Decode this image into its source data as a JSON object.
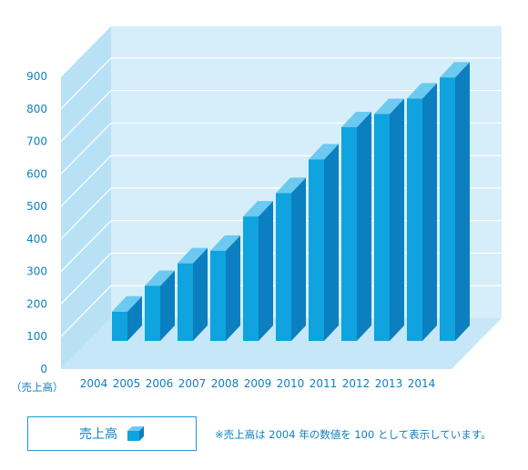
{
  "chart_data": {
    "type": "bar",
    "categories": [
      "2004",
      "2005",
      "2006",
      "2007",
      "2008",
      "2009",
      "2010",
      "2011",
      "2012",
      "2013",
      "2014"
    ],
    "series": [
      {
        "name": "売上高",
        "values": [
          100,
          188,
          265,
          308,
          425,
          505,
          620,
          730,
          775,
          828,
          900
        ]
      }
    ],
    "y_ticks": [
      "0",
      "100",
      "200",
      "300",
      "400",
      "500",
      "600",
      "700",
      "800",
      "900"
    ],
    "ylim": [
      0,
      900
    ],
    "unit_label": "（売上高）",
    "grid": true,
    "style": "3d-bar",
    "colors": {
      "bar_front": "#0fa3df",
      "bar_side": "#0b7fbf",
      "bar_top": "#6cc9f0",
      "back_wall": "#d6eef9",
      "side_wall": "#b8e1f6",
      "floor": "#c5e7f8",
      "grid": "#ffffff",
      "text": "#0e7fc2"
    }
  },
  "legend": {
    "label": "売上高"
  },
  "footnote": "※売上高は 2004 年の数値を 100 として表示しています。"
}
